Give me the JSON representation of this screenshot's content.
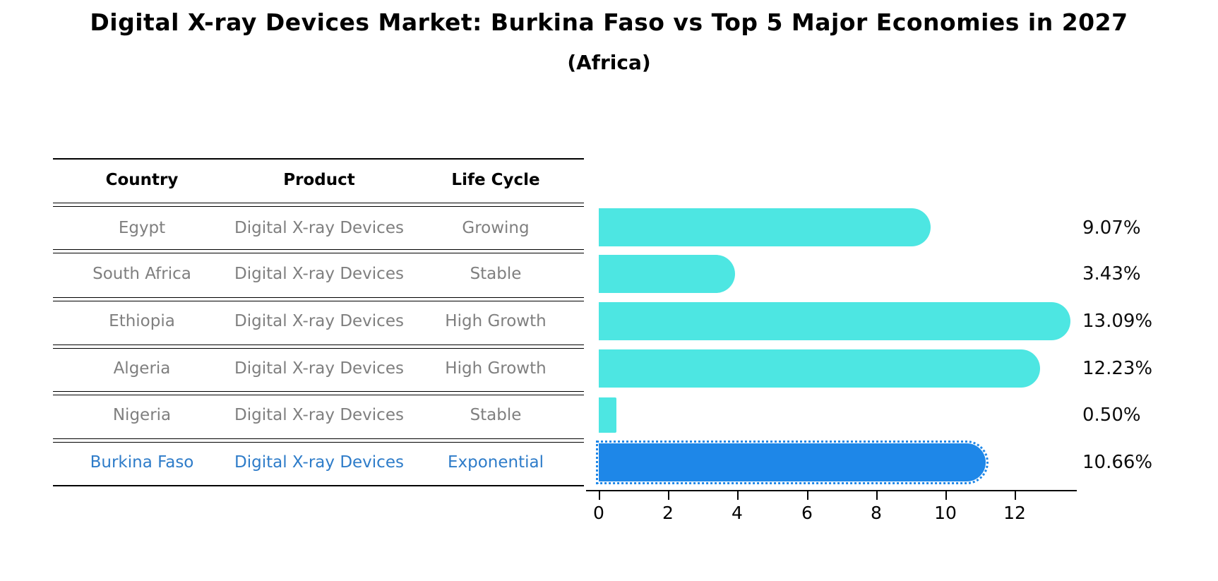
{
  "title": "Digital X-ray Devices Market: Burkina Faso vs Top 5 Major Economies in 2027",
  "subtitle": "(Africa)",
  "table": {
    "columns": [
      "Country",
      "Product",
      "Life Cycle"
    ],
    "rows": [
      {
        "country": "Egypt",
        "product": "Digital X-ray Devices",
        "life_cycle": "Growing"
      },
      {
        "country": "South Africa",
        "product": "Digital X-ray Devices",
        "life_cycle": "Stable"
      },
      {
        "country": "Ethiopia",
        "product": "Digital X-ray Devices",
        "life_cycle": "High Growth"
      },
      {
        "country": "Algeria",
        "product": "Digital X-ray Devices",
        "life_cycle": "High Growth"
      },
      {
        "country": "Nigeria",
        "product": "Digital X-ray Devices",
        "life_cycle": "Stable"
      },
      {
        "country": "Burkina Faso",
        "product": "Digital X-ray Devices",
        "life_cycle": "Exponential"
      }
    ],
    "highlight_row": "Burkina Faso"
  },
  "chart_data": {
    "type": "bar",
    "orientation": "horizontal",
    "categories": [
      "Egypt",
      "South Africa",
      "Ethiopia",
      "Algeria",
      "Nigeria",
      "Burkina Faso"
    ],
    "values": [
      9.07,
      3.43,
      13.09,
      12.23,
      0.5,
      10.66
    ],
    "value_labels": [
      "9.07%",
      "3.43%",
      "13.09%",
      "12.23%",
      "0.50%",
      "10.66%"
    ],
    "x_ticks": [
      "0",
      "2",
      "4",
      "6",
      "8",
      "10",
      "12"
    ],
    "xlim": [
      0,
      13.7
    ],
    "grid": false,
    "legend": false,
    "highlight_index": 5,
    "units": "percent CAGR"
  },
  "colors": {
    "bar_default": "#4de6e2",
    "bar_highlight": "#1e87e8",
    "highlight_text": "#2e7cc9",
    "table_text": "#7f7f7f",
    "header_text": "#000000",
    "axis": "#000000"
  }
}
